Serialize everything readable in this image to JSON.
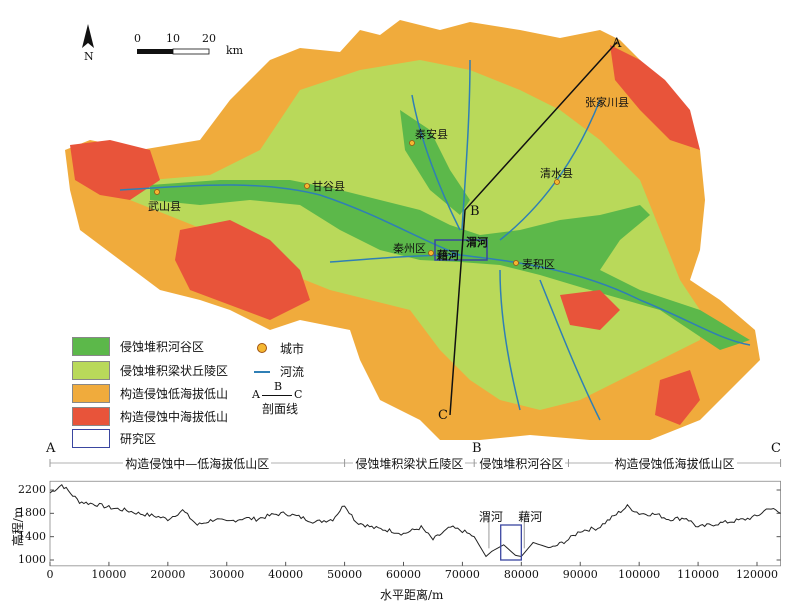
{
  "map": {
    "north_label": "N",
    "scale": {
      "ticks": [
        "0",
        "10",
        "20"
      ],
      "unit": "km"
    },
    "cities": [
      {
        "name": "秦安县"
      },
      {
        "name": "甘谷县"
      },
      {
        "name": "武山县"
      },
      {
        "name": "清水县"
      },
      {
        "name": "张家川县"
      },
      {
        "name": "秦州区"
      },
      {
        "name": "麦积区"
      }
    ],
    "rivers": [
      {
        "name": "渭河"
      },
      {
        "name": "藉河"
      }
    ],
    "profile_points": {
      "A": "A",
      "B": "B",
      "C": "C"
    },
    "colors": {
      "valley": "#5cb84a",
      "hill": "#b9d95a",
      "low_mountain": "#f0ab3c",
      "mid_mountain": "#e8543a",
      "river": "#2f7fb5",
      "study_area": "#3a46a0",
      "city": "#f5b731"
    }
  },
  "legend": {
    "items": [
      {
        "label": "侵蚀堆积河谷区",
        "color": "#5cb84a"
      },
      {
        "label": "侵蚀堆积梁状丘陵区",
        "color": "#b9d95a"
      },
      {
        "label": "构造侵蚀低海拔低山",
        "color": "#f0ab3c"
      },
      {
        "label": "构造侵蚀中海拔低山",
        "color": "#e8543a"
      },
      {
        "label": "研究区",
        "color": "#ffffff"
      }
    ],
    "city_label": "城市",
    "river_label": "河流",
    "profile": {
      "a": "A",
      "b": "B",
      "c": "C",
      "label": "剖面线"
    }
  },
  "chart_data": {
    "type": "line",
    "xlabel": "水平距离/m",
    "ylabel": "高程/m",
    "xlim": [
      0,
      124000
    ],
    "ylim": [
      900,
      2350
    ],
    "xticks": [
      "0",
      "10000",
      "20000",
      "30000",
      "40000",
      "50000",
      "60000",
      "70000",
      "80000",
      "90000",
      "100000",
      "110000",
      "120000"
    ],
    "yticks": [
      "1000",
      "1400",
      "1800",
      "2200"
    ],
    "point_labels": {
      "A": "A",
      "B": "B",
      "C": "C"
    },
    "segments": [
      {
        "label": "构造侵蚀中—低海拔低山区",
        "from": 0,
        "to": 50000
      },
      {
        "label": "侵蚀堆积梁状丘陵区",
        "from": 50000,
        "to": 72000
      },
      {
        "label": "侵蚀堆积河谷区",
        "from": 72000,
        "to": 88000
      },
      {
        "label": "构造侵蚀低海拔低山区",
        "from": 88000,
        "to": 124000
      }
    ],
    "annotations": [
      {
        "label": "渭河",
        "x": 74500
      },
      {
        "label": "藉河",
        "x": 80500
      }
    ],
    "study_area_range": [
      76500,
      80000
    ],
    "x": [
      0,
      2000,
      5000,
      8000,
      10000,
      13000,
      15000,
      18000,
      20000,
      22500,
      25000,
      28000,
      30000,
      33000,
      35000,
      38000,
      40000,
      43000,
      45000,
      48000,
      50000,
      52000,
      55000,
      58000,
      60000,
      63000,
      65000,
      68000,
      70000,
      72000,
      74000,
      75000,
      77000,
      79000,
      80000,
      82000,
      85000,
      88000,
      90000,
      93000,
      95000,
      98000,
      100000,
      103000,
      105000,
      108000,
      110000,
      113000,
      115000,
      118000,
      120000,
      122000,
      124000
    ],
    "y": [
      2150,
      2290,
      2000,
      1950,
      1900,
      1850,
      1800,
      1750,
      1700,
      1850,
      1600,
      1700,
      1650,
      1720,
      1700,
      1780,
      1800,
      1720,
      1650,
      1700,
      1950,
      1650,
      1550,
      1500,
      1450,
      1560,
      1350,
      1560,
      1500,
      1400,
      1060,
      1150,
      1260,
      1080,
      1060,
      1300,
      1200,
      1350,
      1500,
      1550,
      1700,
      1920,
      1800,
      1780,
      1700,
      1720,
      1560,
      1620,
      1650,
      1700,
      1750,
      1900,
      1800
    ]
  }
}
